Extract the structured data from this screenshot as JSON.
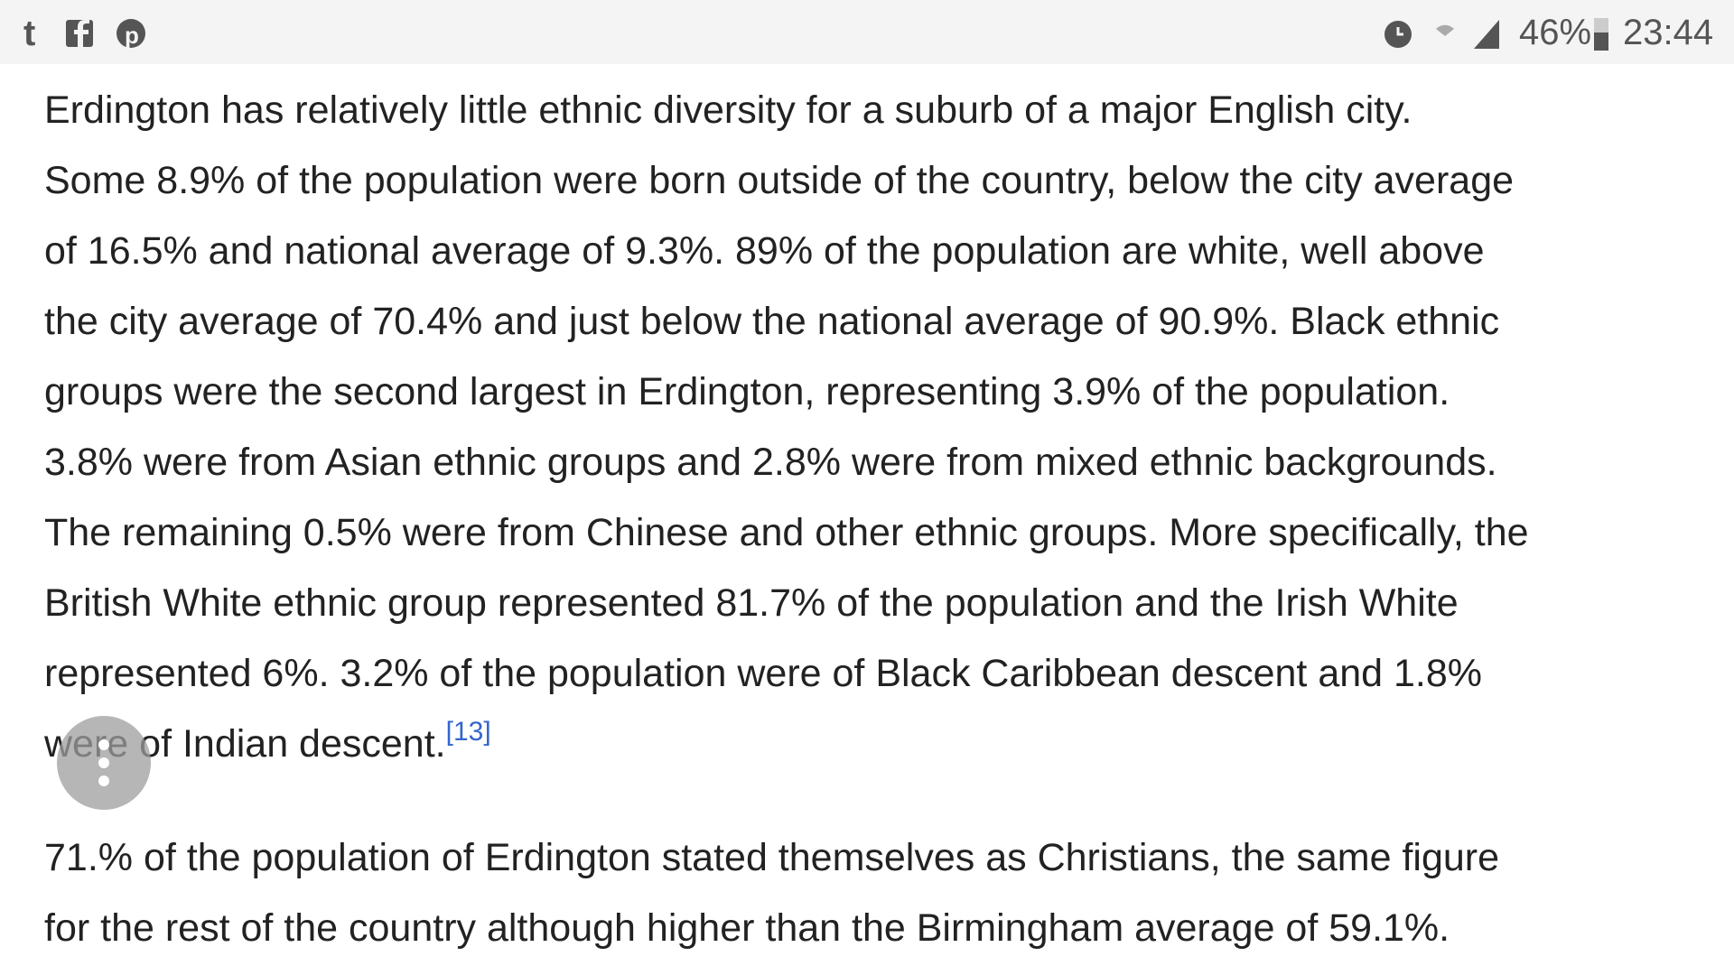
{
  "status_bar": {
    "battery": "46%",
    "time": "23:44"
  },
  "article": {
    "paragraphs": [
      {
        "lines": [
          "Erdington has relatively little ethnic diversity for a suburb of a major English city.",
          "Some 8.9% of the population were born outside of the country, below the city average",
          "of 16.5% and national average of 9.3%. 89% of the population are white, well above",
          "the city average of 70.4% and just below the national average of 90.9%. Black ethnic",
          "groups were the second largest in Erdington, representing 3.9% of the population.",
          "3.8% were from Asian ethnic groups and 2.8% were from mixed ethnic backgrounds.",
          "The remaining 0.5% were from Chinese and other ethnic groups. More specifically, the",
          "British White ethnic group represented 81.7% of the population and the Irish White",
          "represented 6%. 3.2% of the population were of Black Caribbean descent and 1.8%",
          "were of Indian descent."
        ],
        "citation": "[13]"
      },
      {
        "lines": [
          "71.% of the population of Erdington stated themselves as Christians, the same figure",
          "for the rest of the country although higher than the Birmingham average of 59.1%."
        ]
      }
    ]
  }
}
